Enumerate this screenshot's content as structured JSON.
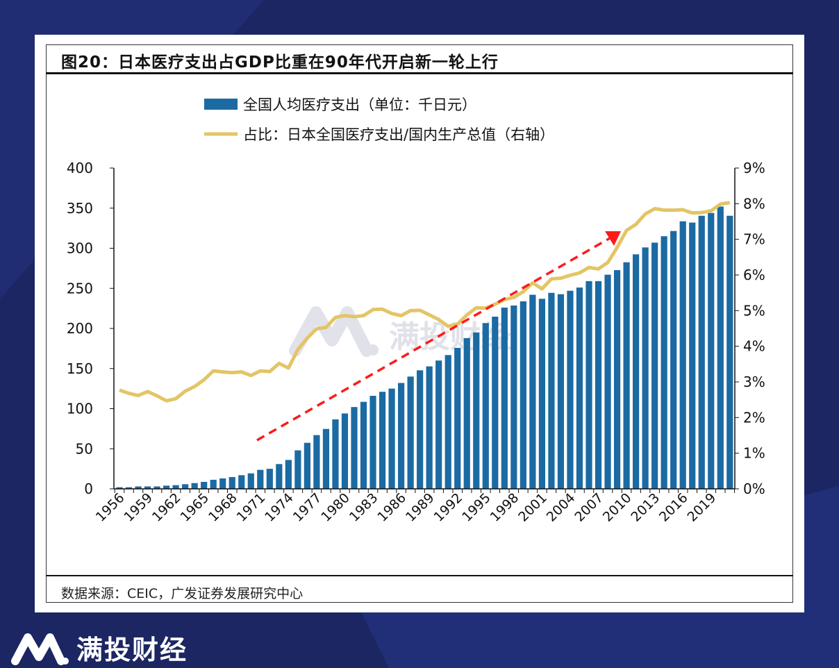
{
  "title": "图20：日本医疗支出占GDP比重在90年代开启新一轮上行",
  "source": "数据来源：CEIC，广发证券发展研究中心",
  "brand": "满投财经",
  "watermark": "满投财经",
  "colors": {
    "bar": "#1b6aa3",
    "line": "#e3c565",
    "arrow": "#ff1a1a",
    "background": "#1b2663"
  },
  "chart_data": {
    "type": "bar+line",
    "legend_placement": "top-left",
    "series": [
      {
        "name": "全国人均医疗支出（单位：千日元）",
        "type": "bar",
        "axis": "left",
        "values": [
          2,
          2,
          3,
          3,
          3,
          4,
          4.6,
          5.8,
          7.2,
          8.7,
          11.3,
          13,
          14.7,
          17,
          19.3,
          23.7,
          25,
          30.9,
          36,
          48,
          57.4,
          67,
          74.7,
          86.6,
          94,
          102,
          108.5,
          116,
          121,
          125,
          132,
          140,
          147.8,
          152.7,
          160,
          166.8,
          175.8,
          188,
          195,
          206.7,
          214.7,
          226,
          228.6,
          233.8,
          242,
          237,
          244.4,
          242.7,
          247,
          251,
          259,
          259,
          267,
          272.7,
          282.5,
          292.4,
          301,
          307,
          315,
          321.5,
          333.6,
          332,
          340.5,
          344,
          352,
          340.5
        ]
      },
      {
        "name": "占比：日本全国医疗支出/国内生产总值（右轴）",
        "type": "line",
        "axis": "right",
        "values": [
          2.77,
          2.68,
          2.62,
          2.73,
          2.61,
          2.47,
          2.53,
          2.74,
          2.87,
          3.06,
          3.31,
          3.28,
          3.26,
          3.28,
          3.18,
          3.31,
          3.29,
          3.52,
          3.39,
          3.91,
          4.23,
          4.49,
          4.53,
          4.81,
          4.86,
          4.83,
          4.86,
          5.03,
          5.04,
          4.92,
          4.86,
          5.0,
          5.01,
          4.88,
          4.75,
          4.56,
          4.62,
          4.88,
          5.08,
          5.07,
          5.18,
          5.31,
          5.37,
          5.53,
          5.78,
          5.61,
          5.89,
          5.91,
          5.99,
          6.06,
          6.21,
          6.17,
          6.35,
          6.77,
          7.25,
          7.42,
          7.71,
          7.86,
          7.82,
          7.82,
          7.83,
          7.74,
          7.75,
          7.8,
          7.99,
          8.03
        ]
      }
    ],
    "x_start": 1956,
    "x_end": 2021,
    "x_tick_labels": [
      "1956",
      "1959",
      "1962",
      "1965",
      "1968",
      "1971",
      "1974",
      "1977",
      "1980",
      "1983",
      "1986",
      "1989",
      "1992",
      "1995",
      "1998",
      "2001",
      "2004",
      "2007",
      "2010",
      "2013",
      "2016",
      "2019"
    ],
    "y_left": {
      "range": [
        0,
        400
      ],
      "ticks": [
        "0",
        "50",
        "100",
        "150",
        "200",
        "250",
        "300",
        "350",
        "400"
      ]
    },
    "y_right": {
      "range": [
        0,
        9
      ],
      "unit": "%",
      "ticks": [
        "0%",
        "1%",
        "2%",
        "3%",
        "4%",
        "5%",
        "6%",
        "7%",
        "8%",
        "9%"
      ]
    },
    "annotation": {
      "type": "dashed-arrow",
      "from_year": 1971,
      "to_year": 2009,
      "direction": "up"
    },
    "grid": false
  }
}
